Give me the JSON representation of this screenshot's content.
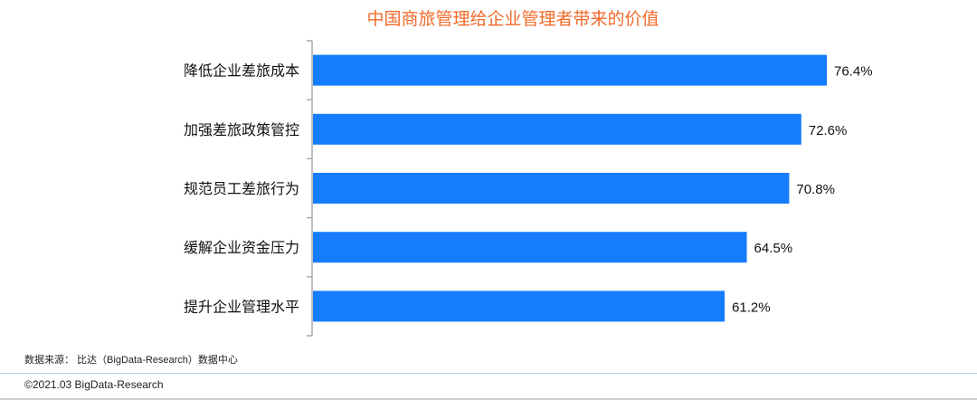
{
  "chart_data": {
    "type": "bar",
    "orientation": "horizontal",
    "title": "中国商旅管理给企业管理者带来的价值",
    "categories": [
      "降低企业差旅成本",
      "加强差旅政策管控",
      "规范员工差旅行为",
      "缓解企业资金压力",
      "提升企业管理水平"
    ],
    "values": [
      76.4,
      72.6,
      70.8,
      64.5,
      61.2
    ],
    "data_labels": [
      "76.4%",
      "72.6%",
      "70.8%",
      "64.5%",
      "61.2%"
    ],
    "unit": "%",
    "bar_color": "#157dfd",
    "title_color": "#f26a2a",
    "grid": false,
    "legend": "none"
  },
  "footer": {
    "source": "数据来源：  比达（BigData-Research）数据中心",
    "copyright": "©2021.03 BigData-Research"
  }
}
